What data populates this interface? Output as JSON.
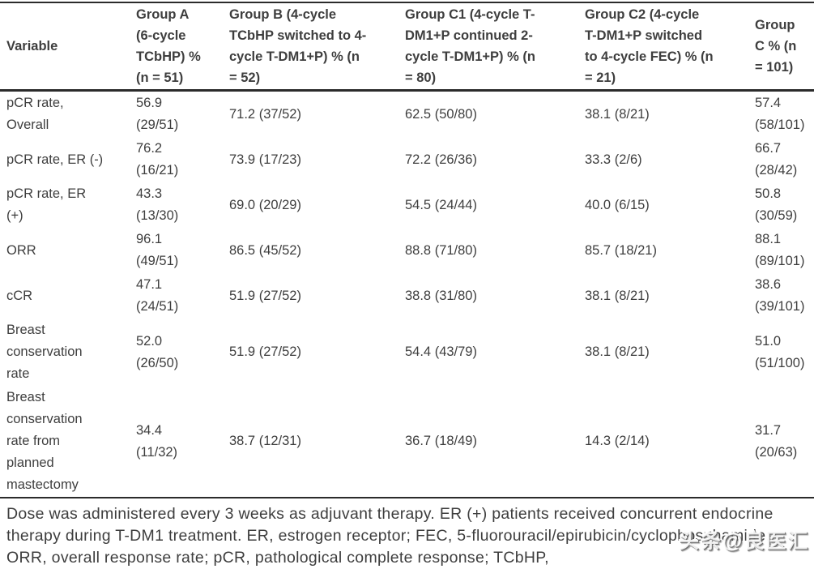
{
  "colors": {
    "background": "#ffffff",
    "text": "#3e3e3e",
    "border": "#2b2b2b",
    "watermark_fill": "#ffffff",
    "watermark_shadow": "#606060"
  },
  "table": {
    "columns": [
      "Variable",
      "Group A (6-cycle TCbHP) % (n = 51)",
      "Group B (4-cycle TCbHP switched to 4-cycle T-DM1+P) % (n = 52)",
      "Group C1 (4-cycle T-DM1+P continued 2-cycle T-DM1+P) % (n = 80)",
      "Group C2 (4-cycle T-DM1+P switched to 4-cycle FEC) % (n = 21)",
      "Group C % (n = 101)"
    ],
    "rows": [
      {
        "variable": "pCR rate, Overall",
        "values": [
          "56.9 (29/51)",
          "71.2 (37/52)",
          "62.5 (50/80)",
          "38.1 (8/21)",
          "57.4 (58/101)"
        ]
      },
      {
        "variable": "pCR rate, ER (-)",
        "values": [
          "76.2 (16/21)",
          "73.9 (17/23)",
          "72.2 (26/36)",
          "33.3 (2/6)",
          "66.7 (28/42)"
        ]
      },
      {
        "variable": "pCR rate, ER (+)",
        "values": [
          "43.3 (13/30)",
          "69.0 (20/29)",
          "54.5 (24/44)",
          "40.0 (6/15)",
          "50.8 (30/59)"
        ]
      },
      {
        "variable": "ORR",
        "values": [
          "96.1 (49/51)",
          "86.5 (45/52)",
          "88.8 (71/80)",
          "85.7 (18/21)",
          "88.1 (89/101)"
        ]
      },
      {
        "variable": "cCR",
        "values": [
          "47.1 (24/51)",
          "51.9 (27/52)",
          "38.8 (31/80)",
          "38.1 (8/21)",
          "38.6 (39/101)"
        ]
      },
      {
        "variable": "Breast conservation rate",
        "values": [
          "52.0 (26/50)",
          "51.9 (27/52)",
          "54.4 (43/79)",
          "38.1 (8/21)",
          "51.0 (51/100)"
        ]
      },
      {
        "variable": "Breast conservation rate from planned mastectomy",
        "values": [
          "34.4 (11/32)",
          "38.7 (12/31)",
          "36.7 (18/49)",
          "14.3 (2/14)",
          "31.7 (20/63)"
        ]
      }
    ]
  },
  "footnote": {
    "text": "Dose was administered every 3 weeks as adjuvant therapy. ER (+) patients received concurrent endocrine therapy during T-DM1 treatment. ER, estrogen receptor; FEC, 5-fluorouracil/epirubicin/cyclophosphamide; ORR, overall response rate; pCR, pathological complete response; TCbHP,"
  },
  "watermark": {
    "text": "头条@良医汇"
  }
}
